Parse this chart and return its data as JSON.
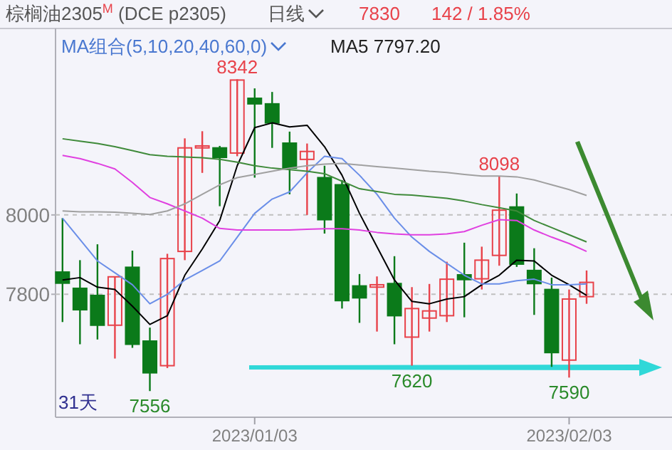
{
  "chart_data": {
    "type": "candlestick",
    "title": "棕榈油2305$^{M}$ (DCE p2305)",
    "annotations": [
      "日线",
      "7830",
      "142 / 1.85%",
      "MA组合(5,10,20,40,60,0)",
      "MA5 7797.20",
      "31天",
      {
        "text": "8342",
        "y": 8342
      },
      {
        "text": "8098",
        "y": 8098
      },
      {
        "text": "7556",
        "y": 7556
      },
      {
        "text": "7620",
        "y": 7620
      },
      {
        "text": "7590",
        "y": 7590
      }
    ],
    "categories": [
      null,
      null,
      null,
      null,
      null,
      null,
      null,
      null,
      null,
      null,
      null,
      "2023/01/03",
      null,
      null,
      null,
      null,
      null,
      null,
      null,
      null,
      null,
      null,
      null,
      null,
      null,
      null,
      null,
      null,
      null,
      "2023/02/03",
      null
    ],
    "ohlc": [
      [
        7856,
        7992,
        7730,
        7828
      ],
      [
        7815,
        7886,
        7674,
        7761
      ],
      [
        7797,
        7926,
        7686,
        7722
      ],
      [
        7722,
        7845,
        7638,
        7844
      ],
      [
        7868,
        7910,
        7665,
        7674
      ],
      [
        7682,
        7716,
        7556,
        7602
      ],
      [
        7620,
        7902,
        7614,
        7890
      ],
      [
        7908,
        8193,
        7886,
        8169
      ],
      [
        8169,
        8211,
        8106,
        8174
      ],
      [
        8169,
        8174,
        8022,
        8145
      ],
      [
        8156,
        8342,
        8148,
        8340
      ],
      [
        8294,
        8319,
        8094,
        8280
      ],
      [
        8280,
        8310,
        8169,
        8232
      ],
      [
        8181,
        8210,
        8052,
        8118
      ],
      [
        8140,
        8180,
        8000,
        8160
      ],
      [
        8094,
        8124,
        7953,
        7988
      ],
      [
        8076,
        8088,
        7764,
        7784
      ],
      [
        7821,
        7851,
        7728,
        7791
      ],
      [
        7818,
        7845,
        7706,
        7824
      ],
      [
        7827,
        7896,
        7674,
        7746
      ],
      [
        7692,
        7818,
        7620,
        7764
      ],
      [
        7740,
        7826,
        7706,
        7758
      ],
      [
        7746,
        7882,
        7730,
        7838
      ],
      [
        7849,
        7930,
        7742,
        7837
      ],
      [
        7839,
        7920,
        7812,
        7886
      ],
      [
        7898,
        8098,
        7872,
        8012
      ],
      [
        8020,
        8054,
        7869,
        7876
      ],
      [
        7860,
        7916,
        7748,
        7827
      ],
      [
        7812,
        7842,
        7617,
        7653
      ],
      [
        7634,
        7812,
        7590,
        7788
      ],
      [
        7794,
        7860,
        7776,
        7830
      ]
    ],
    "colors": [
      "#0b7a1a",
      "#0b7a1a",
      "#0b7a1a",
      "#e8424a",
      "#0b7a1a",
      "#0b7a1a",
      "#e8424a",
      "#e8424a",
      "#e8424a",
      "#0b7a1a",
      "#e8424a",
      "#0b7a1a",
      "#0b7a1a",
      "#0b7a1a",
      "#e8424a",
      "#0b7a1a",
      "#0b7a1a",
      "#0b7a1a",
      "#e8424a",
      "#0b7a1a",
      "#e8424a",
      "#e8424a",
      "#e8424a",
      "#0b7a1a",
      "#e8424a",
      "#e8424a",
      "#0b7a1a",
      "#0b7a1a",
      "#0b7a1a",
      "#e8424a",
      "#e8424a"
    ],
    "series": [
      {
        "type": "line",
        "color": "#000000",
        "values": [
          7836,
          7842,
          7818,
          7812,
          7770,
          7724,
          7746,
          7848,
          7914,
          7986,
          8124,
          8220,
          8232,
          8222,
          8226,
          8172,
          8100,
          8004,
          7920,
          7836,
          7782,
          7776,
          7788,
          7794,
          7824,
          7848,
          7886,
          7884,
          7848,
          7824,
          7797
        ]
      },
      {
        "type": "line",
        "color": "#6a8ee8",
        "values": [
          7992,
          7938,
          7884,
          7854,
          7824,
          7776,
          7800,
          7836,
          7860,
          7884,
          7944,
          8004,
          8040,
          8058,
          8106,
          8148,
          8142,
          8100,
          8052,
          7992,
          7944,
          7908,
          7878,
          7848,
          7826,
          7826,
          7834,
          7838,
          7824,
          7824,
          7826
        ]
      },
      {
        "type": "line",
        "color": "#e040e0",
        "values": [
          8150,
          8142,
          8130,
          8116,
          8082,
          8044,
          8028,
          8010,
          7992,
          7966,
          7962,
          7962,
          7962,
          7962,
          7964,
          7965,
          7965,
          7962,
          7956,
          7952,
          7950,
          7950,
          7952,
          7958,
          7974,
          7988,
          7986,
          7962,
          7944,
          7928,
          7908
        ]
      },
      {
        "type": "line",
        "color": "#3f8a3a",
        "values": [
          8192,
          8186,
          8180,
          8172,
          8162,
          8152,
          8148,
          8146,
          8144,
          8140,
          8133,
          8124,
          8118,
          8114,
          8110,
          8104,
          8085,
          8066,
          8059,
          8052,
          8050,
          8046,
          8042,
          8035,
          8026,
          8018,
          8010,
          7986,
          7968,
          7950,
          7932
        ]
      },
      {
        "type": "line",
        "color": "#a0a0a0",
        "values": [
          8010,
          8008,
          8008,
          8007,
          8004,
          8001,
          8010,
          8028,
          8052,
          8076,
          8094,
          8102,
          8110,
          8118,
          8124,
          8128,
          8130,
          8126,
          8122,
          8118,
          8114,
          8110,
          8107,
          8102,
          8098,
          8098,
          8096,
          8088,
          8076,
          8064,
          8049
        ]
      }
    ],
    "ylim": [
      7490,
      8470
    ],
    "yticks": [
      7800,
      8000
    ],
    "grid": "y"
  }
}
